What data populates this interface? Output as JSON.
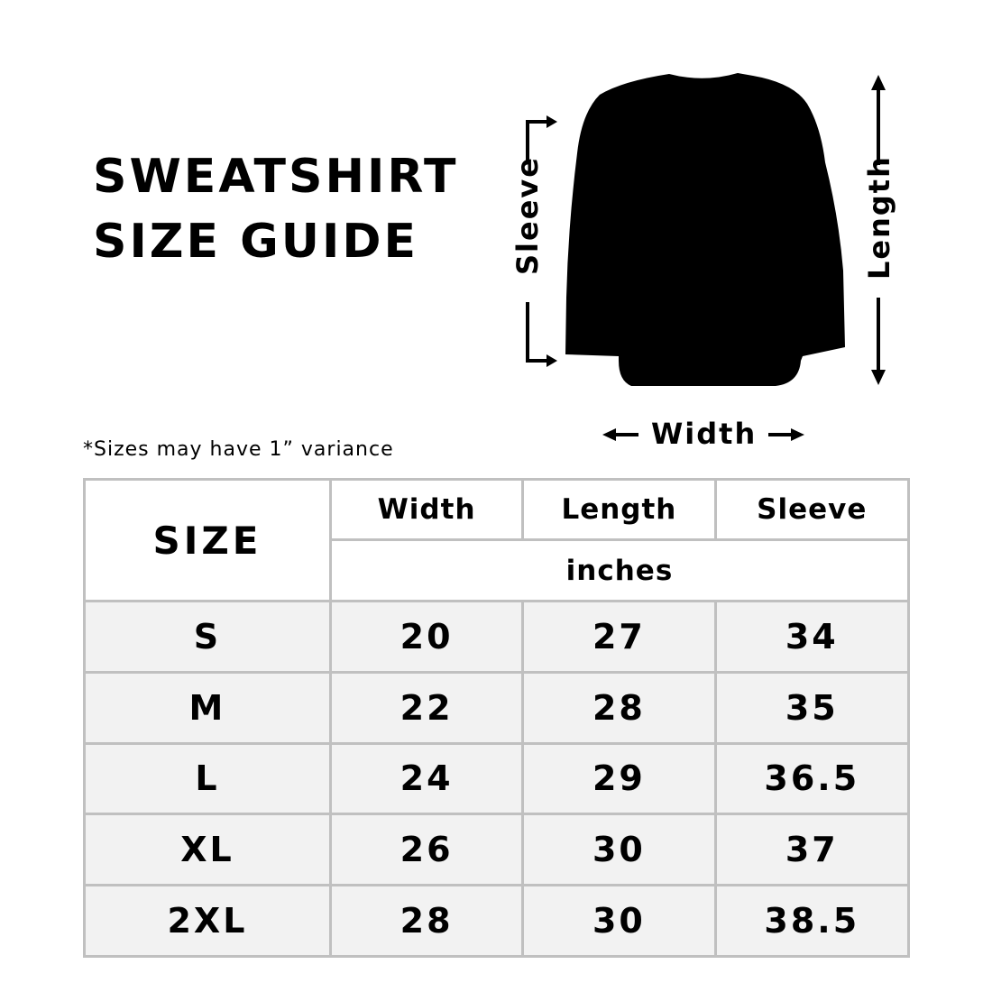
{
  "title": {
    "line1": "SWEATSHIRT",
    "line2": "SIZE GUIDE"
  },
  "diagram": {
    "sleeve": "Sleeve",
    "length": "Length",
    "width": "Width",
    "garment_color": "#000000"
  },
  "note": "*Sizes may have 1” variance",
  "table": {
    "size_header": "SIZE",
    "columns": [
      "Width",
      "Length",
      "Sleeve"
    ],
    "unit": "inches",
    "rows": [
      {
        "size": "S",
        "width": "20",
        "length": "27",
        "sleeve": "34"
      },
      {
        "size": "M",
        "width": "22",
        "length": "28",
        "sleeve": "35"
      },
      {
        "size": "L",
        "width": "24",
        "length": "29",
        "sleeve": "36.5"
      },
      {
        "size": "XL",
        "width": "26",
        "length": "30",
        "sleeve": "37"
      },
      {
        "size": "2XL",
        "width": "28",
        "length": "30",
        "sleeve": "38.5"
      }
    ],
    "border_color": "#c0c0c0",
    "row_bg": "#f2f2f2"
  }
}
